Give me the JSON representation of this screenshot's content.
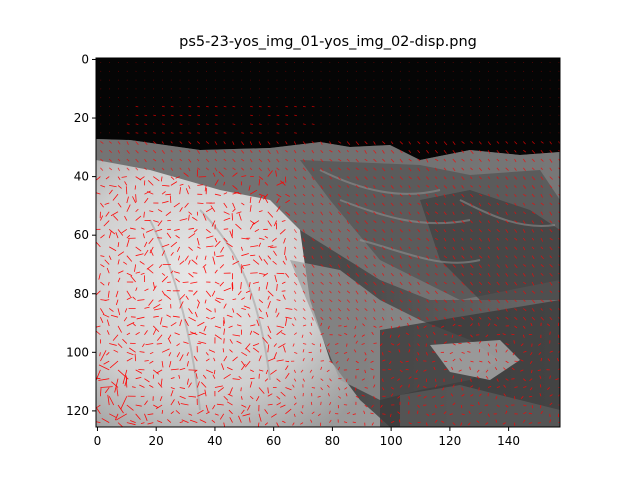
{
  "chart_data": {
    "type": "heatmap",
    "title": "ps5-23-yos_img_01-yos_img_02-disp.png",
    "description_of_content": "grayscale image overlaid with red displacement vector (quiver) field",
    "xlim": [
      -0.5,
      157.5
    ],
    "ylim": [
      125.5,
      -0.5
    ],
    "x_ticks": [
      0,
      20,
      40,
      60,
      80,
      100,
      120,
      140
    ],
    "y_ticks": [
      0,
      20,
      40,
      60,
      80,
      100,
      120
    ],
    "y_axis_inverted": true,
    "grid": false,
    "arrow_color": "#ff0000",
    "background_colormap": "gray",
    "sky_region_rows": [
      0,
      28
    ],
    "bright_region": {
      "x": [
        0,
        68
      ],
      "y": [
        40,
        125
      ]
    },
    "quiver_grid_step": 3
  },
  "colors": {
    "axes": "#000000",
    "sky": "#050505",
    "arrow": "#ff0000"
  }
}
